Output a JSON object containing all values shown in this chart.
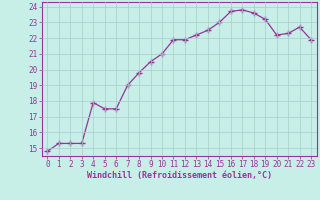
{
  "x": [
    0,
    1,
    2,
    3,
    4,
    5,
    6,
    7,
    8,
    9,
    10,
    11,
    12,
    13,
    14,
    15,
    16,
    17,
    18,
    19,
    20,
    21,
    22,
    23
  ],
  "y": [
    14.8,
    15.3,
    15.3,
    15.3,
    17.9,
    17.5,
    17.5,
    19.0,
    19.8,
    20.5,
    21.0,
    21.9,
    21.9,
    22.2,
    22.5,
    23.0,
    23.7,
    23.8,
    23.6,
    23.2,
    22.2,
    22.3,
    22.7,
    21.9
  ],
  "line_color": "#993399",
  "marker": "+",
  "marker_size": 4,
  "bg_color": "#c8eee8",
  "grid_color": "#aacccc",
  "xlabel": "Windchill (Refroidissement éolien,°C)",
  "xlabel_color": "#993399",
  "tick_color": "#993399",
  "label_color": "#993399",
  "ylim": [
    14.5,
    24.3
  ],
  "xlim": [
    -0.5,
    23.5
  ],
  "yticks": [
    15,
    16,
    17,
    18,
    19,
    20,
    21,
    22,
    23,
    24
  ],
  "xticks": [
    0,
    1,
    2,
    3,
    4,
    5,
    6,
    7,
    8,
    9,
    10,
    11,
    12,
    13,
    14,
    15,
    16,
    17,
    18,
    19,
    20,
    21,
    22,
    23
  ],
  "xtick_labels": [
    "0",
    "1",
    "2",
    "3",
    "4",
    "5",
    "6",
    "7",
    "8",
    "9",
    "10",
    "11",
    "12",
    "13",
    "14",
    "15",
    "16",
    "17",
    "18",
    "19",
    "20",
    "21",
    "22",
    "23"
  ],
  "ytick_labels": [
    "15",
    "16",
    "17",
    "18",
    "19",
    "20",
    "21",
    "22",
    "23",
    "24"
  ],
  "xlabel_fontsize": 6.0,
  "tick_fontsize": 5.5,
  "linewidth": 0.9
}
